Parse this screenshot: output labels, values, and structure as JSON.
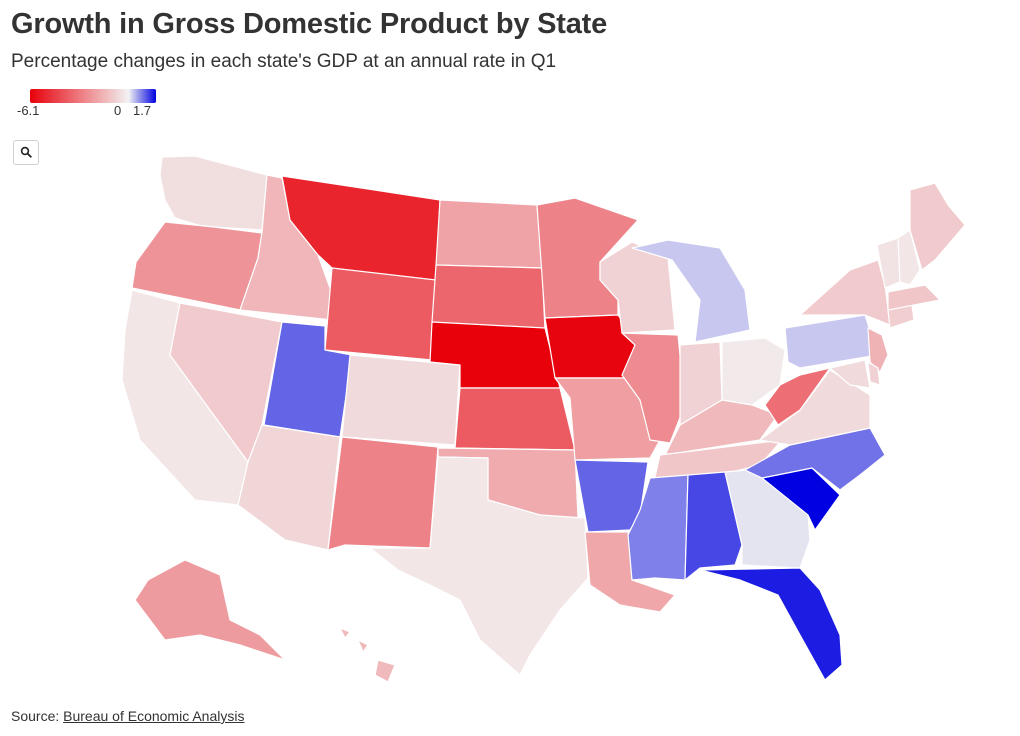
{
  "title": "Growth in Gross Domestic Product by State",
  "subtitle": "Percentage changes in each state's GDP at an annual rate in Q1",
  "legend": {
    "min_label": "-6.1",
    "zero_label": "0",
    "max_label": "1.7",
    "min": -6.1,
    "max": 1.7,
    "colors": {
      "min": "#e8000b",
      "mid": "#f2f2f2",
      "max": "#0000e0"
    }
  },
  "zoom_button": {
    "icon": "search-icon"
  },
  "source": {
    "prefix": "Source: ",
    "link_text": "Bureau of Economic Analysis"
  },
  "map_data": {
    "type": "choropleth",
    "unit": "percent",
    "states": {
      "WA": -0.5,
      "OR": -2.4,
      "CA": -0.3,
      "ID": -1.5,
      "NV": -1.0,
      "MT": -5.2,
      "WY": -3.8,
      "UT": 1.0,
      "AZ": -0.7,
      "CO": -0.6,
      "NM": -2.8,
      "ND": -2.0,
      "SD": -3.5,
      "NE": -6.1,
      "KS": -3.8,
      "OK": -1.8,
      "TX": -0.3,
      "MN": -2.8,
      "IA": -6.0,
      "MO": -2.1,
      "AR": 1.0,
      "LA": -1.9,
      "WI": -0.8,
      "IL": -2.6,
      "MI": 0.3,
      "IN": -0.8,
      "OH": -0.2,
      "KY": -1.4,
      "TN": -1.1,
      "MS": 0.8,
      "AL": 1.2,
      "GA": 0.1,
      "FL": 1.5,
      "SC": 1.7,
      "NC": 0.9,
      "VA": -0.6,
      "WV": -3.3,
      "PA": 0.3,
      "NY": -1.0,
      "ME": -1.0,
      "VT": -0.4,
      "NH": -0.3,
      "MA": -1.1,
      "CT": -0.9,
      "NJ": -1.6,
      "DE": -0.8,
      "MD": -0.6,
      "AK": -2.2,
      "HI": -1.4
    }
  }
}
